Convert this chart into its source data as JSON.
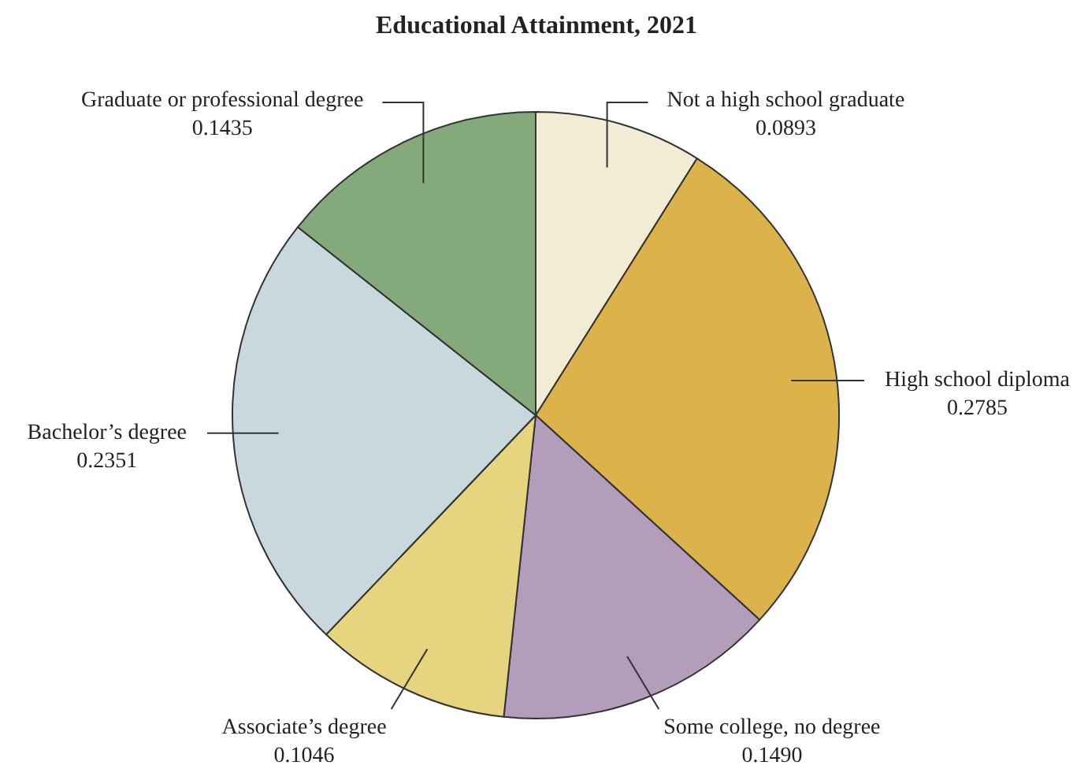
{
  "chart_data": {
    "type": "pie",
    "title": "Educational Attainment, 2021",
    "categories": [
      "Not a high school graduate",
      "High school diploma",
      "Some college, no degree",
      "Associate’s degree",
      "Bachelor’s degree",
      "Graduate or professional degree"
    ],
    "values": [
      0.0893,
      0.2785,
      0.149,
      0.1046,
      0.2351,
      0.1435
    ],
    "value_labels": [
      "0.0893",
      "0.2785",
      "0.1490",
      "0.1046",
      "0.2351",
      "0.1435"
    ],
    "colors": [
      "#f2ecd4",
      "#dcb24a",
      "#b39dbb",
      "#e6d47e",
      "#c8d8dc",
      "#84aa7c"
    ]
  }
}
